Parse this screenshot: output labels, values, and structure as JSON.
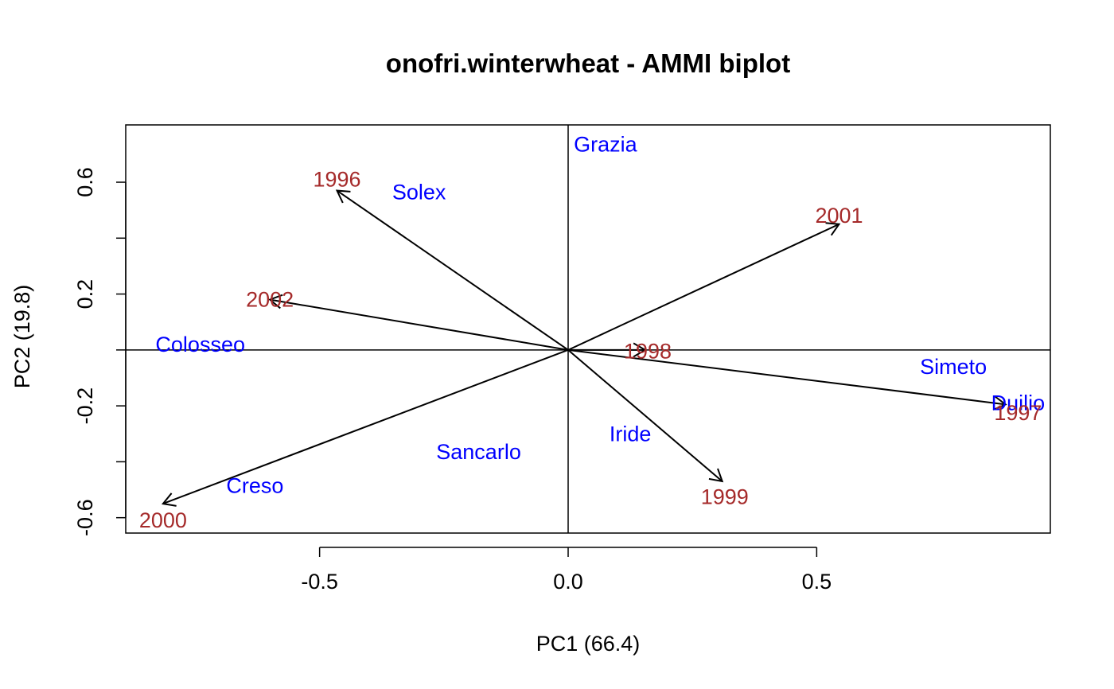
{
  "chart_data": {
    "type": "scatter",
    "title": "onofri.winterwheat - AMMI biplot",
    "xlabel": "PC1 (66.4)",
    "ylabel": "PC2 (19.8)",
    "xlim": [
      -0.89,
      0.97
    ],
    "ylim": [
      -0.655,
      0.805
    ],
    "x_ticks": [
      -0.5,
      0.0,
      0.5
    ],
    "x_tick_labels": [
      "-0.5",
      "0.0",
      "0.5"
    ],
    "y_ticks": [
      -0.6,
      -0.4,
      -0.2,
      0.0,
      0.2,
      0.4,
      0.6
    ],
    "y_tick_labels": [
      "-0.6",
      "",
      "-0.2",
      "",
      "0.2",
      "",
      "0.6"
    ],
    "reference_lines": {
      "x": 0,
      "y": 0
    },
    "grid": false,
    "colors": {
      "genotypes": "#0000ff",
      "environments": "#a52a2a",
      "arrows": "#000000",
      "axes": "#000000"
    },
    "series": [
      {
        "name": "Genotypes",
        "marker": "text",
        "points": [
          {
            "label": "Grazia",
            "x": 0.075,
            "y": 0.735
          },
          {
            "label": "Solex",
            "x": -0.3,
            "y": 0.565
          },
          {
            "label": "Colosseo",
            "x": -0.74,
            "y": 0.02
          },
          {
            "label": "Simeto",
            "x": 0.775,
            "y": -0.06
          },
          {
            "label": "Duilio",
            "x": 0.905,
            "y": -0.19
          },
          {
            "label": "Iride",
            "x": 0.125,
            "y": -0.3
          },
          {
            "label": "Sancarlo",
            "x": -0.18,
            "y": -0.365
          },
          {
            "label": "Creso",
            "x": -0.63,
            "y": -0.485
          }
        ]
      },
      {
        "name": "Environments",
        "marker": "arrow-with-text",
        "points": [
          {
            "label": "1996",
            "x": -0.465,
            "y": 0.57,
            "lx": -0.465,
            "ly": 0.61
          },
          {
            "label": "2001",
            "x": 0.545,
            "y": 0.45,
            "lx": 0.545,
            "ly": 0.48
          },
          {
            "label": "2002",
            "x": -0.6,
            "y": 0.18,
            "lx": -0.6,
            "ly": 0.18
          },
          {
            "label": "1998",
            "x": 0.155,
            "y": 0.0,
            "lx": 0.16,
            "ly": -0.005
          },
          {
            "label": "1997",
            "x": 0.88,
            "y": -0.195,
            "lx": 0.905,
            "ly": -0.225
          },
          {
            "label": "1999",
            "x": 0.31,
            "y": -0.47,
            "lx": 0.315,
            "ly": -0.525
          },
          {
            "label": "2000",
            "x": -0.815,
            "y": -0.55,
            "lx": -0.815,
            "ly": -0.61
          }
        ]
      }
    ]
  }
}
